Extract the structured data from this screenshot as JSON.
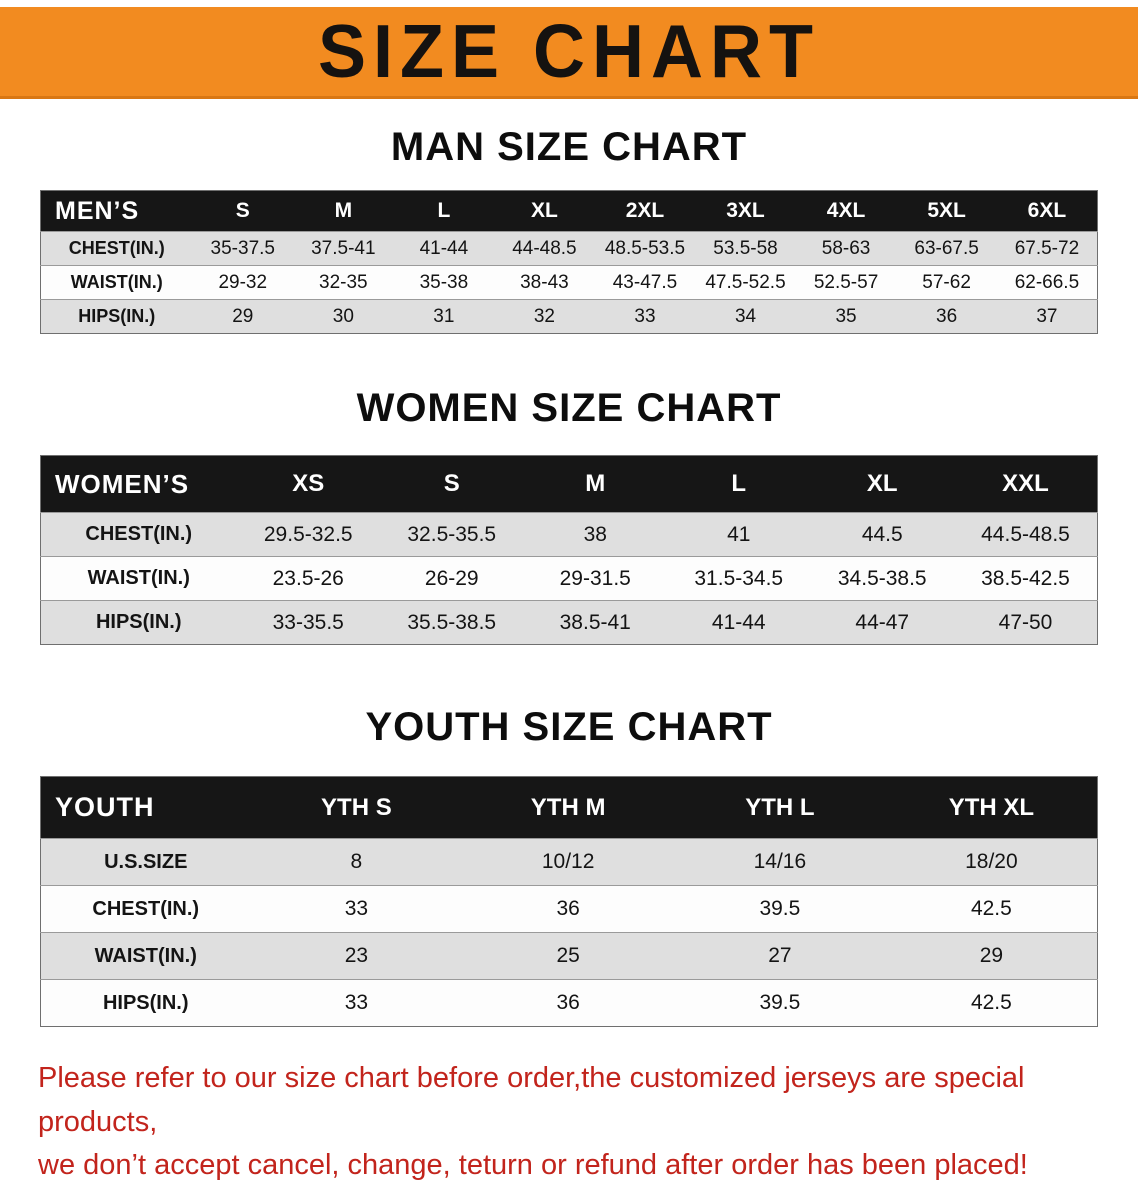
{
  "banner": {
    "title": "SIZE CHART"
  },
  "colors": {
    "banner-bg": "#F28B20",
    "banner-edge": "#D97713",
    "header-bg": "#161616",
    "row-alt": "#DFDFDF",
    "note-color": "#C2241C"
  },
  "sections": [
    {
      "id": "men",
      "css": "sec-men",
      "heading": "MAN SIZE CHART",
      "table": {
        "header": [
          "MEN’S",
          "S",
          "M",
          "L",
          "XL",
          "2XL",
          "3XL",
          "4XL",
          "5XL",
          "6XL"
        ],
        "rows": [
          [
            "CHEST(IN.)",
            "35-37.5",
            "37.5-41",
            "41-44",
            "44-48.5",
            "48.5-53.5",
            "53.5-58",
            "58-63",
            "63-67.5",
            "67.5-72"
          ],
          [
            "WAIST(IN.)",
            "29-32",
            "32-35",
            "35-38",
            "38-43",
            "43-47.5",
            "47.5-52.5",
            "52.5-57",
            "57-62",
            "62-66.5"
          ],
          [
            "HIPS(IN.)",
            "29",
            "30",
            "31",
            "32",
            "33",
            "34",
            "35",
            "36",
            "37"
          ]
        ]
      }
    },
    {
      "id": "women",
      "css": "sec-women",
      "heading": "WOMEN SIZE CHART",
      "table": {
        "header": [
          "WOMEN’S",
          "XS",
          "S",
          "M",
          "L",
          "XL",
          "XXL"
        ],
        "rows": [
          [
            "CHEST(IN.)",
            "29.5-32.5",
            "32.5-35.5",
            "38",
            "41",
            "44.5",
            "44.5-48.5"
          ],
          [
            "WAIST(IN.)",
            "23.5-26",
            "26-29",
            "29-31.5",
            "31.5-34.5",
            "34.5-38.5",
            "38.5-42.5"
          ],
          [
            "HIPS(IN.)",
            "33-35.5",
            "35.5-38.5",
            "38.5-41",
            "41-44",
            "44-47",
            "47-50"
          ]
        ]
      }
    },
    {
      "id": "youth",
      "css": "sec-youth",
      "heading": "YOUTH SIZE CHART",
      "table": {
        "header": [
          "YOUTH",
          "YTH S",
          "YTH M",
          "YTH L",
          "YTH XL"
        ],
        "rows": [
          [
            "U.S.SIZE",
            "8",
            "10/12",
            "14/16",
            "18/20"
          ],
          [
            "CHEST(IN.)",
            "33",
            "36",
            "39.5",
            "42.5"
          ],
          [
            "WAIST(IN.)",
            "23",
            "25",
            "27",
            "29"
          ],
          [
            "HIPS(IN.)",
            "33",
            "36",
            "39.5",
            "42.5"
          ]
        ]
      }
    }
  ],
  "footer": {
    "line1": "Please refer to our size chart before order,the customized jerseys are special products,",
    "line2": "we don’t accept cancel, change, teturn or refund after order has been placed!"
  }
}
